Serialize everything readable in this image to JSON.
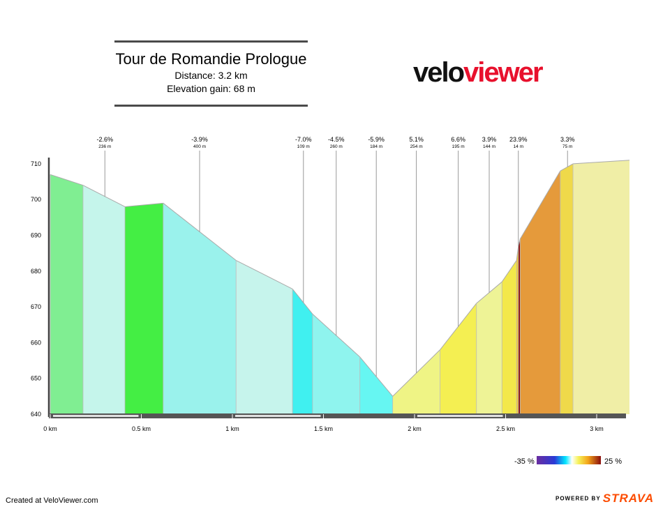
{
  "header": {
    "title": "Tour de Romandie Prologue",
    "distance": "Distance: 3.2 km",
    "elevation_gain": "Elevation gain: 68 m"
  },
  "logo": {
    "part1": "velo",
    "part2": "viewer",
    "colors": {
      "part1": "#111111",
      "part2": "#e8112d"
    }
  },
  "footer": {
    "created": "Created at VeloViewer.com",
    "powered_by": "POWERED BY",
    "strava": "STRAVA"
  },
  "legend": {
    "min_label": "-35 %",
    "max_label": "25 %"
  },
  "chart_data": {
    "type": "area",
    "xlabel": "",
    "ylabel": "",
    "xlim": [
      0,
      3.2
    ],
    "ylim": [
      640,
      712
    ],
    "x_tick_labels": [
      "0 km",
      "0.5 km",
      "1 km",
      "1.5 km",
      "2 km",
      "2.5 km",
      "3 km"
    ],
    "x_tick_values": [
      0,
      0.5,
      1,
      1.5,
      2,
      2.5,
      3
    ],
    "y_tick_values": [
      640,
      650,
      660,
      670,
      680,
      690,
      700,
      710
    ],
    "profile": [
      {
        "x": 0.0,
        "y": 707
      },
      {
        "x": 0.18,
        "y": 704
      },
      {
        "x": 0.41,
        "y": 698
      },
      {
        "x": 0.62,
        "y": 699
      },
      {
        "x": 1.02,
        "y": 683
      },
      {
        "x": 1.33,
        "y": 675
      },
      {
        "x": 1.44,
        "y": 668
      },
      {
        "x": 1.7,
        "y": 656
      },
      {
        "x": 1.88,
        "y": 645
      },
      {
        "x": 2.14,
        "y": 658
      },
      {
        "x": 2.34,
        "y": 671
      },
      {
        "x": 2.48,
        "y": 677
      },
      {
        "x": 2.56,
        "y": 683
      },
      {
        "x": 2.57,
        "y": 687
      },
      {
        "x": 2.58,
        "y": 689
      },
      {
        "x": 2.8,
        "y": 708
      },
      {
        "x": 2.87,
        "y": 710
      },
      {
        "x": 3.18,
        "y": 711
      }
    ],
    "segment_colors": [
      "#80ee92",
      "#c5f5eb",
      "#44ee44",
      "#9af2ec",
      "#c6f4ec",
      "#40f0f0",
      "#8ff4ee",
      "#66f6f2",
      "#eff485",
      "#f4ef52",
      "#eef396",
      "#f3e84a",
      "#f1c22f",
      "#8a0d0d",
      "#e59a3b",
      "#efd94a",
      "#f0eea6",
      "#2fe02f"
    ],
    "annotations": [
      {
        "grade": "-2.6%",
        "length": "236 m",
        "x": 0.3
      },
      {
        "grade": "-3.9%",
        "length": "400 m",
        "x": 0.82
      },
      {
        "grade": "-7.0%",
        "length": "109 m",
        "x": 1.39
      },
      {
        "grade": "-4.5%",
        "length": "260 m",
        "x": 1.57
      },
      {
        "grade": "-5.9%",
        "length": "184 m",
        "x": 1.79
      },
      {
        "grade": "5.1%",
        "length": "254 m",
        "x": 2.01
      },
      {
        "grade": "6.6%",
        "length": "195 m",
        "x": 2.24
      },
      {
        "grade": "3.9%",
        "length": "144 m",
        "x": 2.41
      },
      {
        "grade": "23.9%",
        "length": "14 m",
        "x": 2.57
      },
      {
        "grade": "3.3%",
        "length": "75 m",
        "x": 2.84
      }
    ]
  }
}
